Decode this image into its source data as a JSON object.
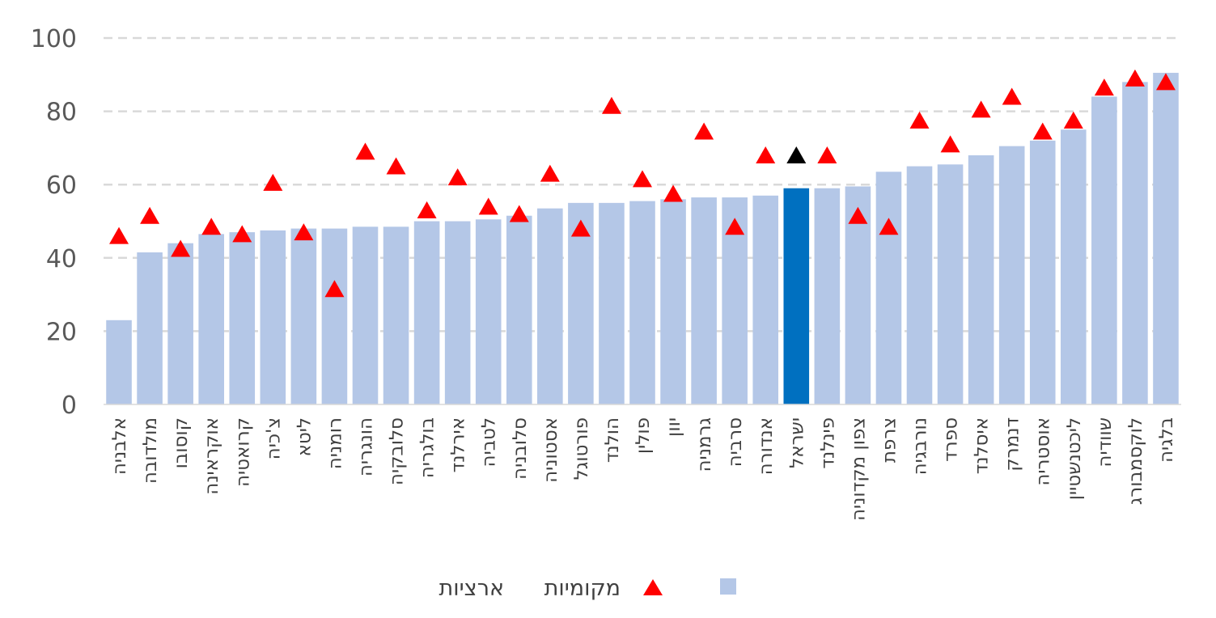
{
  "chart_data": {
    "type": "bar",
    "title": "",
    "xlabel": "",
    "ylabel": "",
    "ylim": [
      0,
      100
    ],
    "yticks": [
      0,
      20,
      40,
      60,
      80,
      100
    ],
    "grid": true,
    "legend_position": "bottom",
    "categories": [
      "אלבניה",
      "מולדובה",
      "קוסובו",
      "אוקראינה",
      "קרואטיה",
      "צ'כיה",
      "ליטא",
      "רומניה",
      "הונגריה",
      "סלובקיה",
      "בולגריה",
      "אירלנד",
      "לטביה",
      "סלובניה",
      "אסטוניה",
      "פורטוגל",
      "הולנד",
      "פולין",
      "יוון",
      "גרמניה",
      "סרביה",
      "אנדורה",
      "ישראל",
      "פינלנד",
      "צפון מקדוניה",
      "צרפת",
      "נורבגיה",
      "ספרד",
      "איסלנד",
      "דנמרק",
      "אוסטריה",
      "ליכטנשטיין",
      "שוודיה",
      "לוקסמבורג",
      "בלגיה"
    ],
    "highlight_category": "ישראל",
    "series": [
      {
        "name": "מקומיות",
        "kind": "bar",
        "color": "#b4c7e7",
        "highlight_color": "#0070c0",
        "values": [
          23,
          41.5,
          44,
          46.5,
          47,
          47.5,
          48,
          48,
          48.5,
          48.5,
          50,
          50,
          50.5,
          51.5,
          53.5,
          55,
          55,
          55.5,
          56,
          56.5,
          56.5,
          57,
          59,
          59,
          59.5,
          63.5,
          65,
          65.5,
          68,
          70.5,
          72,
          75,
          84,
          88,
          90.5
        ]
      },
      {
        "name": "ארציות",
        "kind": "marker-triangle",
        "color": "#ff0000",
        "highlight_color": "#000000",
        "values": [
          46,
          51.5,
          42.5,
          48.5,
          46.5,
          60.5,
          47,
          31.5,
          69,
          65,
          53,
          62,
          54,
          52,
          63,
          48,
          81.5,
          61.5,
          57.5,
          74.5,
          48.5,
          68,
          68,
          68,
          51.5,
          48.5,
          77.5,
          71,
          80.5,
          84,
          74.5,
          77.5,
          86.5,
          89,
          88
        ]
      }
    ]
  }
}
